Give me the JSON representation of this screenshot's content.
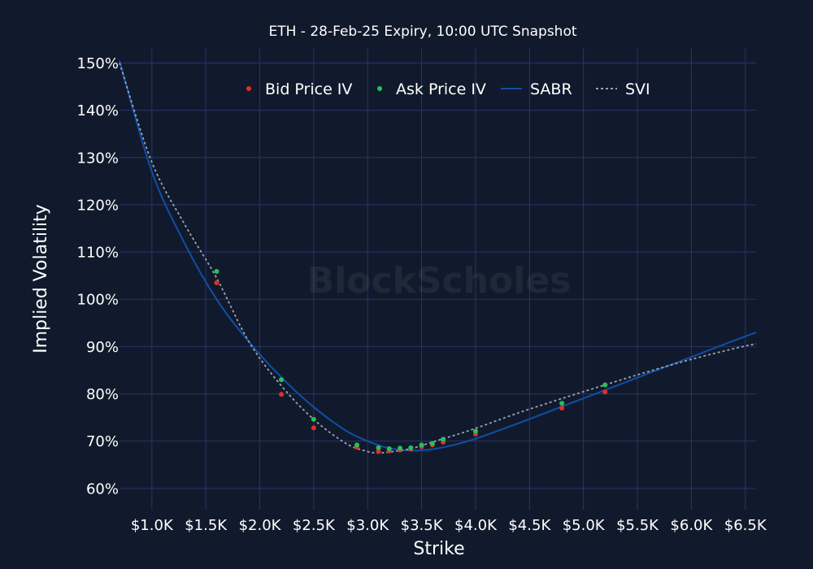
{
  "chart_data": {
    "type": "scatter",
    "title": "ETH - 28-Feb-25 Expiry, 10:00 UTC Snapshot",
    "xlabel": "Strike",
    "ylabel": "Implied Volatility",
    "watermark": "BlockScholes",
    "xlim": [
      700,
      6600
    ],
    "ylim": [
      55.5,
      153
    ],
    "grid": true,
    "legend_position": "top",
    "x_ticks": [
      {
        "value": 1000,
        "label": "$1.0K"
      },
      {
        "value": 1500,
        "label": "$1.5K"
      },
      {
        "value": 2000,
        "label": "$2.0K"
      },
      {
        "value": 2500,
        "label": "$2.5K"
      },
      {
        "value": 3000,
        "label": "$3.0K"
      },
      {
        "value": 3500,
        "label": "$3.5K"
      },
      {
        "value": 4000,
        "label": "$4.0K"
      },
      {
        "value": 4500,
        "label": "$4.5K"
      },
      {
        "value": 5000,
        "label": "$5.0K"
      },
      {
        "value": 5500,
        "label": "$5.5K"
      },
      {
        "value": 6000,
        "label": "$6.0K"
      },
      {
        "value": 6500,
        "label": "$6.5K"
      }
    ],
    "y_ticks": [
      {
        "value": 60,
        "label": "60%"
      },
      {
        "value": 70,
        "label": "70%"
      },
      {
        "value": 80,
        "label": "80%"
      },
      {
        "value": 90,
        "label": "90%"
      },
      {
        "value": 100,
        "label": "100%"
      },
      {
        "value": 110,
        "label": "110%"
      },
      {
        "value": 120,
        "label": "120%"
      },
      {
        "value": 130,
        "label": "130%"
      },
      {
        "value": 140,
        "label": "140%"
      },
      {
        "value": 150,
        "label": "150%"
      }
    ],
    "series": [
      {
        "name": "Bid Price IV",
        "kind": "markers",
        "color": "#e0302b",
        "x": [
          1600,
          2200,
          2500,
          2900,
          3100,
          3200,
          3300,
          3400,
          3500,
          3600,
          3700,
          4000,
          4800,
          5200
        ],
        "y": [
          103.5,
          79.9,
          72.8,
          68.7,
          67.8,
          67.9,
          68.1,
          68.3,
          68.8,
          69.2,
          69.8,
          71.5,
          77.0,
          80.4
        ]
      },
      {
        "name": "Ask Price IV",
        "kind": "markers",
        "color": "#27c15a",
        "x": [
          1600,
          2200,
          2500,
          2900,
          3100,
          3200,
          3300,
          3400,
          3500,
          3600,
          3700,
          4000,
          4800,
          5200
        ],
        "y": [
          105.9,
          83.0,
          74.6,
          69.2,
          68.6,
          68.4,
          68.5,
          68.6,
          69.2,
          69.5,
          70.4,
          72.1,
          78.0,
          81.9
        ]
      },
      {
        "name": "SABR",
        "kind": "line",
        "color": "#0f4fa8",
        "x": [
          700,
          1000,
          1300,
          1600,
          1900,
          2200,
          2500,
          2800,
          3000,
          3200,
          3400,
          3600,
          3800,
          4000,
          4400,
          4800,
          5200,
          5600,
          6000,
          6400,
          6600
        ],
        "y": [
          150.5,
          127.0,
          112.0,
          100.0,
          91.0,
          83.5,
          77.2,
          72.2,
          70.0,
          68.5,
          68.0,
          68.3,
          69.2,
          70.5,
          73.8,
          77.3,
          80.8,
          84.3,
          87.8,
          91.3,
          93.0
        ]
      },
      {
        "name": "SVI",
        "kind": "line",
        "dash": true,
        "color": "#9ba3ad",
        "x": [
          700,
          1000,
          1300,
          1600,
          1900,
          2200,
          2500,
          2800,
          3000,
          3100,
          3200,
          3400,
          3600,
          3800,
          4000,
          4400,
          4800,
          5200,
          5600,
          6000,
          6400,
          6600
        ],
        "y": [
          150.0,
          129.0,
          116.0,
          104.5,
          91.0,
          81.7,
          74.6,
          69.5,
          67.8,
          67.5,
          67.7,
          68.4,
          69.8,
          71.2,
          72.7,
          76.0,
          79.0,
          81.9,
          84.7,
          87.3,
          89.6,
          90.6
        ]
      }
    ]
  }
}
